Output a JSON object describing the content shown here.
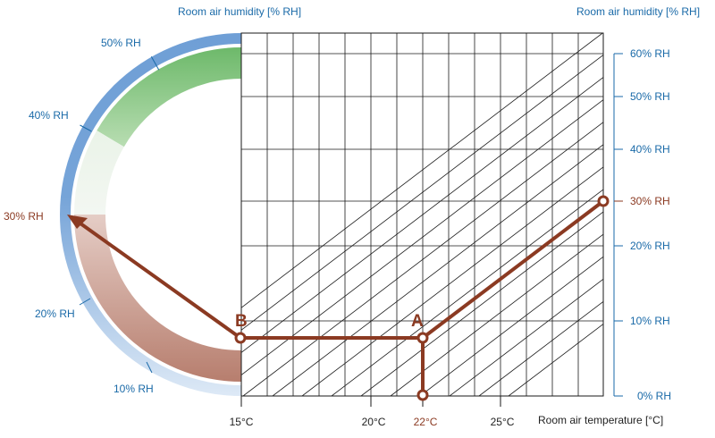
{
  "header": {
    "left_title": "Room air humidity [% RH]",
    "right_title": "Room air humidity [% RH]"
  },
  "gauge": {
    "labels": [
      "50% RH",
      "40% RH",
      "30% RH",
      "20% RH",
      "10% RH"
    ],
    "highlight_label": "30% RH"
  },
  "axes": {
    "x_title": "Room air temperature [°C]",
    "x_ticks": [
      "15°C",
      "20°C",
      "22°C",
      "25°C"
    ],
    "y_ticks": [
      "60% RH",
      "50% RH",
      "40% RH",
      "30% RH",
      "20% RH",
      "10% RH",
      "0% RH"
    ]
  },
  "points": {
    "a_label": "A",
    "b_label": "B"
  },
  "reading": {
    "temperature": 22,
    "cooled_temperature": 15,
    "start_humidity_percent": 30,
    "result_humidity_percent": 30
  },
  "colors": {
    "accent_blue": "#1a6aa8",
    "path_red": "#8b3a22",
    "grid": "#1a1a1a"
  }
}
